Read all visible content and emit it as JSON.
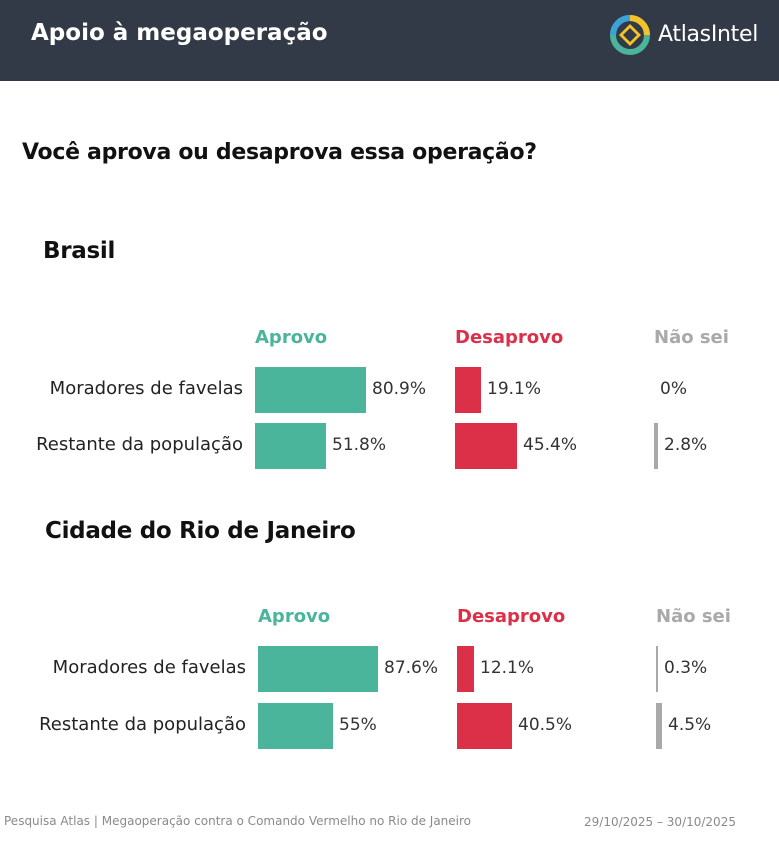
{
  "header": {
    "title": "Apoio à megaoperação",
    "brand": "AtlasIntel"
  },
  "question": "Você aprova ou desaprova essa operação?",
  "colors": {
    "aprovo": "#4ab59a",
    "desaprovo": "#dc3049",
    "naosei": "#a9a9a9",
    "header_bg": "#323a47"
  },
  "chart_data": [
    {
      "type": "bar",
      "title": "Brasil",
      "series_labels": [
        "Aprovo",
        "Desaprovo",
        "Não sei"
      ],
      "categories": [
        "Moradores de favelas",
        "Restante da população"
      ],
      "series": [
        {
          "name": "Aprovo",
          "values": [
            80.9,
            51.8
          ],
          "labels": [
            "80.9%",
            "51.8%"
          ]
        },
        {
          "name": "Desaprovo",
          "values": [
            19.1,
            45.4
          ],
          "labels": [
            "19.1%",
            "45.4%"
          ]
        },
        {
          "name": "Não sei",
          "values": [
            0,
            2.8
          ],
          "labels": [
            "0%",
            "2.8%"
          ]
        }
      ]
    },
    {
      "type": "bar",
      "title": "Cidade do Rio de Janeiro",
      "series_labels": [
        "Aprovo",
        "Desaprovo",
        "Não sei"
      ],
      "categories": [
        "Moradores de favelas",
        "Restante da população"
      ],
      "series": [
        {
          "name": "Aprovo",
          "values": [
            87.6,
            55
          ],
          "labels": [
            "87.6%",
            "55%"
          ]
        },
        {
          "name": "Desaprovo",
          "values": [
            12.1,
            40.5
          ],
          "labels": [
            "12.1%",
            "40.5%"
          ]
        },
        {
          "name": "Não sei",
          "values": [
            0.3,
            4.5
          ],
          "labels": [
            "0.3%",
            "4.5%"
          ]
        }
      ]
    }
  ],
  "footer": {
    "source": "Pesquisa Atlas | Megaoperação contra o Comando Vermelho no Rio de Janeiro",
    "dates": "29/10/2025 – 30/10/2025"
  }
}
